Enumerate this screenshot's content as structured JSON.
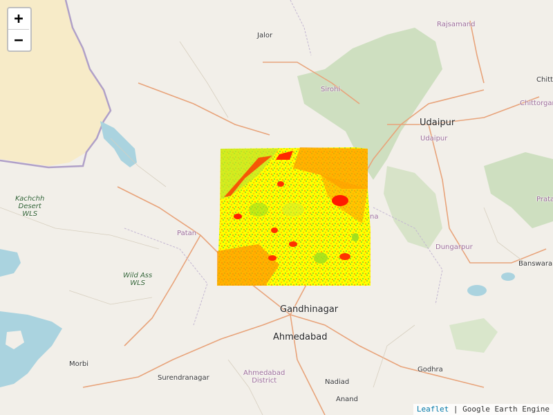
{
  "map": {
    "zoom_in_label": "+",
    "zoom_out_label": "−",
    "attribution": {
      "leaflet": "Leaflet",
      "separator": " | ",
      "source": "Google Earth Engine"
    },
    "overlay_palette": [
      "#ff0000",
      "#ff8000",
      "#ffff00",
      "#99dd22"
    ],
    "colors": {
      "land": "#f2efe9",
      "desert": "#f7ebc8",
      "water": "#aad3df",
      "forest": "#c8dcb8",
      "border": "#a89dba"
    },
    "labels": {
      "jalor": "Jalor",
      "rajsamand": "Rajsamand",
      "sirohi": "Sirohi",
      "udaipur": "Udaipur",
      "udaipur_district": "Udaipur",
      "chittorgarh": "Chitt",
      "chittorgarh2": "Chittorgarh",
      "kachchh": "Kachchh\nDesert\nWLS",
      "patan": "Patan",
      "wild_ass": "Wild Ass\nWLS",
      "dungarpur": "Dungarpur",
      "banswara": "Banswara",
      "pratapgarh": "Prata",
      "gandhinagar": "Gandhinagar",
      "ahmedabad": "Ahmedabad",
      "ahmedabad_district": "Ahmedabad\nDistrict",
      "morbi": "Morbi",
      "surendranagar": "Surendranagar",
      "nadiad": "Nadiad",
      "godhra": "Godhra",
      "anand": "Anand",
      "mehsana_partial": "na"
    }
  }
}
